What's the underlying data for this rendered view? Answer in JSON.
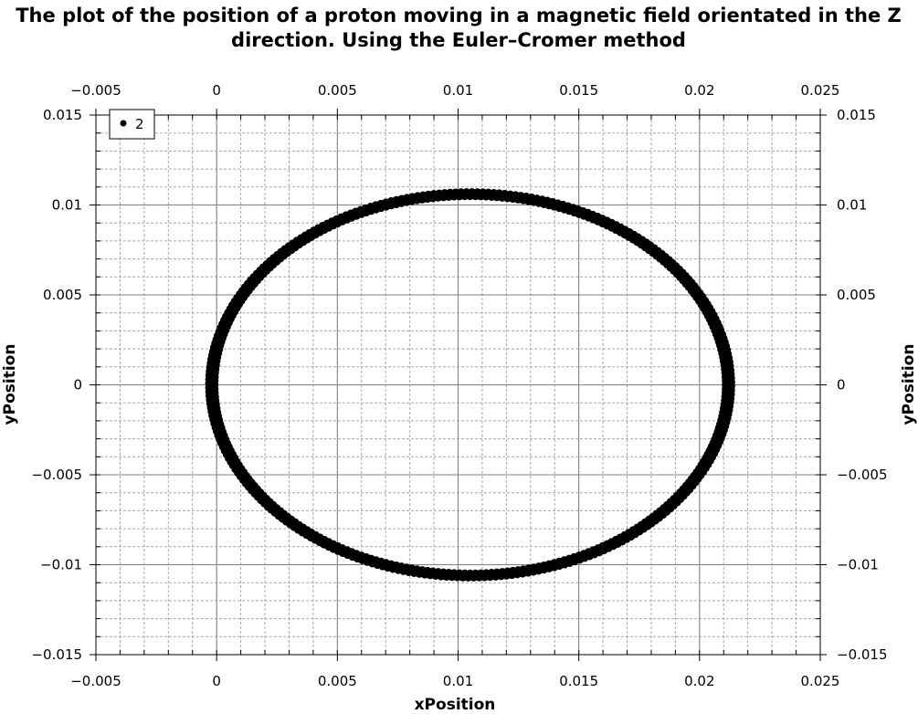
{
  "chart_data": {
    "type": "scatter",
    "title_lines": [
      "The plot of the position of a proton moving in a magnetic field orientated in the Z",
      "direction. Using the Euler–Cromer method"
    ],
    "xlabel": "xPosition",
    "ylabel": "yPosition",
    "xlim": [
      -0.005,
      0.025
    ],
    "ylim": [
      -0.015,
      0.015
    ],
    "x_ticks": [
      -0.005,
      0,
      0.005,
      0.01,
      0.015,
      0.02,
      0.025
    ],
    "x_tick_labels": [
      "−0.005",
      "0",
      "0.005",
      "0.01",
      "0.015",
      "0.02",
      "0.025"
    ],
    "y_ticks": [
      0.015,
      0.01,
      0.005,
      0,
      -0.005,
      -0.01,
      -0.015
    ],
    "y_tick_labels": [
      "0.015",
      "0.01",
      "0.005",
      "0",
      "−0.005",
      "−0.01",
      "−0.015"
    ],
    "x_minor_step": 0.001,
    "y_minor_step": 0.001,
    "grid": true,
    "legend_position": "top-left",
    "series": [
      {
        "name": "2",
        "marker": "dot",
        "color": "#000000",
        "shape": "ellipse",
        "center": [
          0.0105,
          0.0
        ],
        "x_semi_axis": 0.0107,
        "y_semi_axis": 0.0106,
        "x_range": [
          -0.0002,
          0.0212
        ],
        "y_range": [
          -0.0106,
          0.0106
        ]
      }
    ]
  }
}
